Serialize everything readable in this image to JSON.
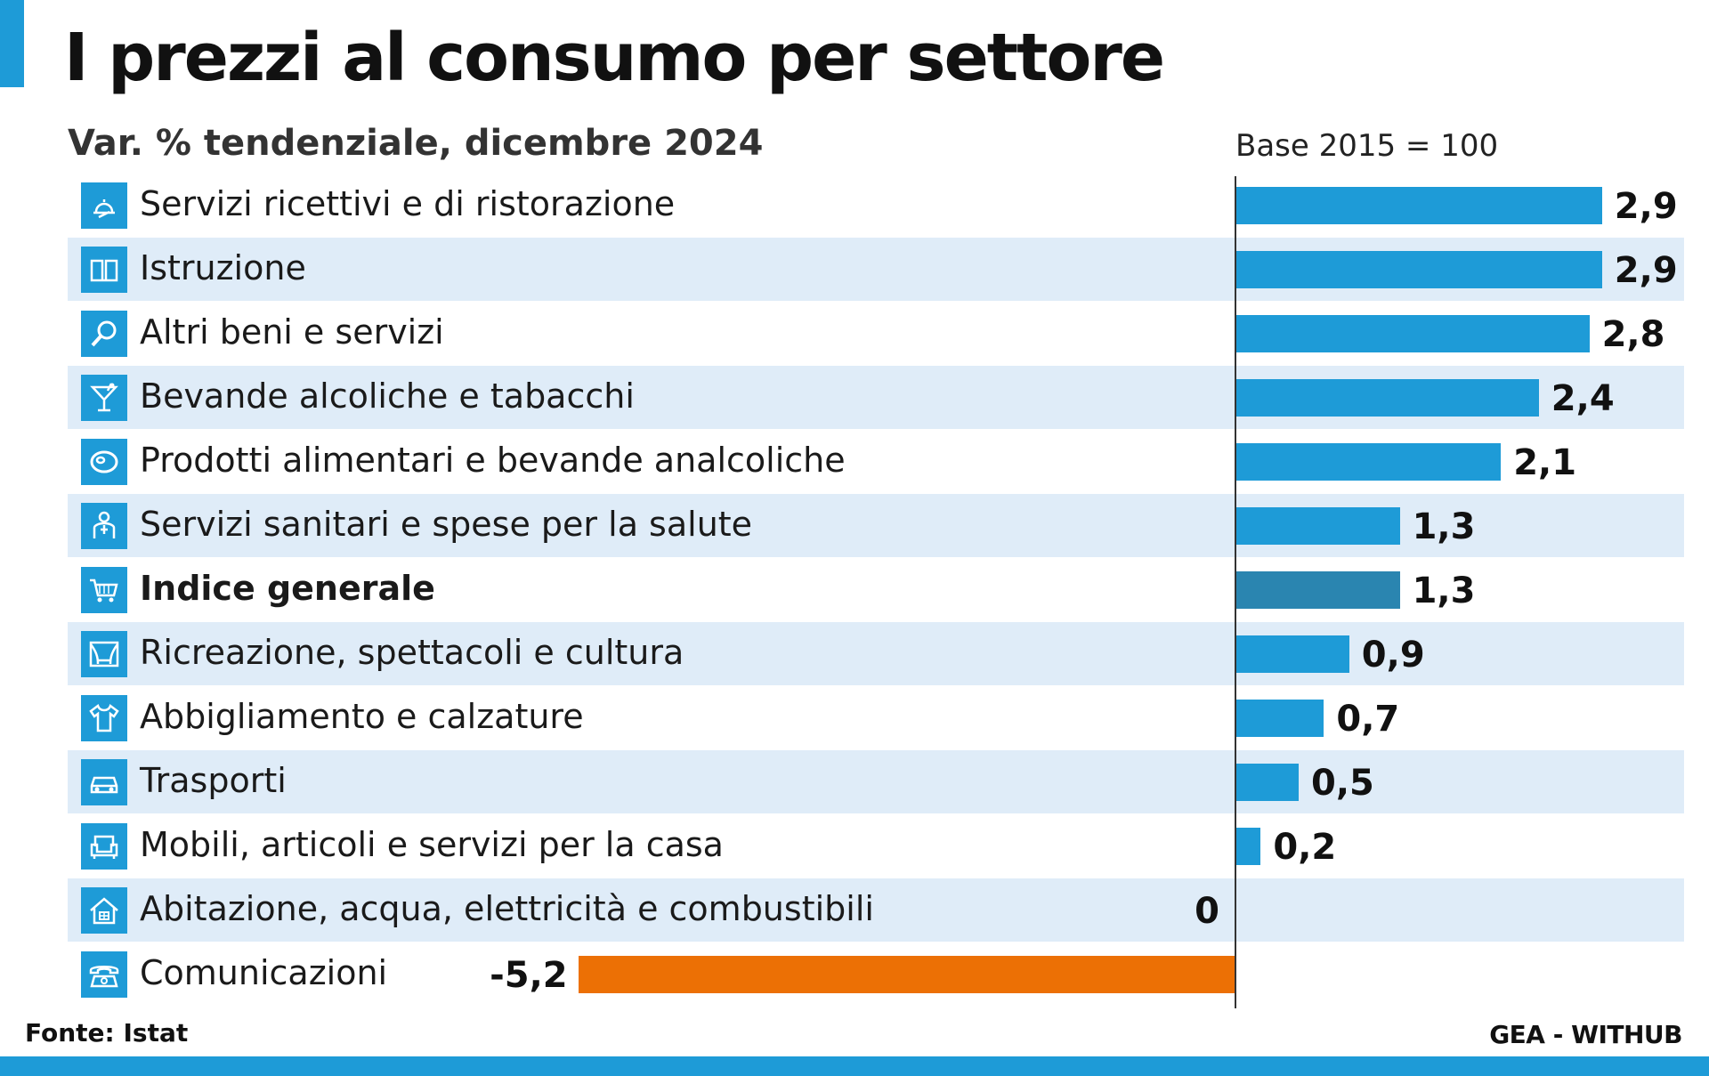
{
  "title": "I prezzi al consumo per settore",
  "subtitle": "Var. % tendenziale, dicembre 2024",
  "base_note": "Base 2015 = 100",
  "footer": {
    "source": "Fonte: Istat",
    "credit": "GEA - WITHUB"
  },
  "colors": {
    "accent": "#1e9bd7",
    "bar_positive": "#1e9bd7",
    "bar_highlight": "#2a85b0",
    "bar_negative": "#ec7005",
    "band": "#dfecf8"
  },
  "chart_data": {
    "type": "bar",
    "orientation": "horizontal",
    "title": "I prezzi al consumo per settore",
    "subtitle": "Var. % tendenziale, dicembre 2024",
    "categories": [
      "Servizi ricettivi e di ristorazione",
      "Istruzione",
      "Altri beni e servizi",
      "Bevande alcoliche e tabacchi",
      "Prodotti alimentari e bevande analcoliche",
      "Servizi sanitari e spese per la salute",
      "Indice generale",
      "Ricreazione, spettacoli e cultura",
      "Abbigliamento e calzature",
      "Trasporti",
      "Mobili, articoli e servizi per la casa",
      "Abitazione, acqua, elettricità e combustibili",
      "Comunicazioni"
    ],
    "values": [
      2.9,
      2.9,
      2.8,
      2.4,
      2.1,
      1.3,
      1.3,
      0.9,
      0.7,
      0.5,
      0.2,
      0,
      -5.2
    ],
    "value_labels": [
      "2,9",
      "2,9",
      "2,8",
      "2,4",
      "2,1",
      "1,3",
      "1,3",
      "0,9",
      "0,7",
      "0,5",
      "0,2",
      "0",
      "-5,2"
    ],
    "icons": [
      "waiter-cloche-icon",
      "book-icon",
      "magnifier-icon",
      "cocktail-glass-icon",
      "meat-steak-icon",
      "doctor-icon",
      "shopping-cart-icon",
      "theater-stage-icon",
      "shirt-icon",
      "car-icon",
      "armchair-icon",
      "house-icon",
      "telephone-icon"
    ],
    "highlight": "Indice generale",
    "xlabel": "",
    "ylabel": "",
    "grid": false
  }
}
